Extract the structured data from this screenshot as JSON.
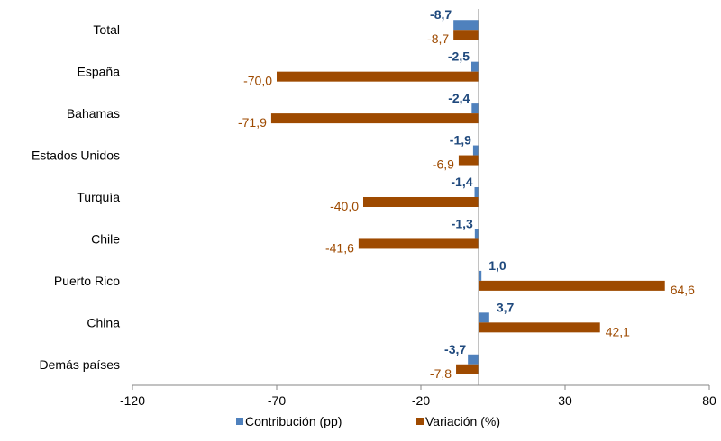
{
  "chart_data": {
    "type": "bar",
    "orientation": "horizontal",
    "title": "",
    "xlabel": "",
    "ylabel": "",
    "categories": [
      "Total",
      "España",
      "Bahamas",
      "Estados Unidos",
      "Turquía",
      "Chile",
      "Puerto Rico",
      "China",
      "Demás países"
    ],
    "series": [
      {
        "name": "Contribución (pp)",
        "values": [
          -8.7,
          -2.5,
          -2.4,
          -1.9,
          -1.4,
          -1.3,
          1.0,
          3.7,
          -3.7
        ],
        "labels": [
          "-8,7",
          "-2,5",
          "-2,4",
          "-1,9",
          "-1,4",
          "-1,3",
          "1,0",
          "3,7",
          "-3,7"
        ],
        "color": "#4F81BD",
        "label_color": "#1F497D"
      },
      {
        "name": "Variación (%)",
        "values": [
          -8.7,
          -70.0,
          -71.9,
          -6.9,
          -40.0,
          -41.6,
          64.6,
          42.1,
          -7.8
        ],
        "labels": [
          "-8,7",
          "-70,0",
          "-71,9",
          "-6,9",
          "-40,0",
          "-41,6",
          "64,6",
          "42,1",
          "-7,8"
        ],
        "color": "#9E4A00",
        "label_color": "#9E4A00"
      }
    ],
    "xlim": [
      -120,
      80
    ],
    "xticks": [
      -120,
      -70,
      -20,
      30,
      80
    ],
    "xtick_labels": [
      "-120",
      "-70",
      "-20",
      "30",
      "80"
    ],
    "grid": false,
    "legend": "bottom"
  }
}
